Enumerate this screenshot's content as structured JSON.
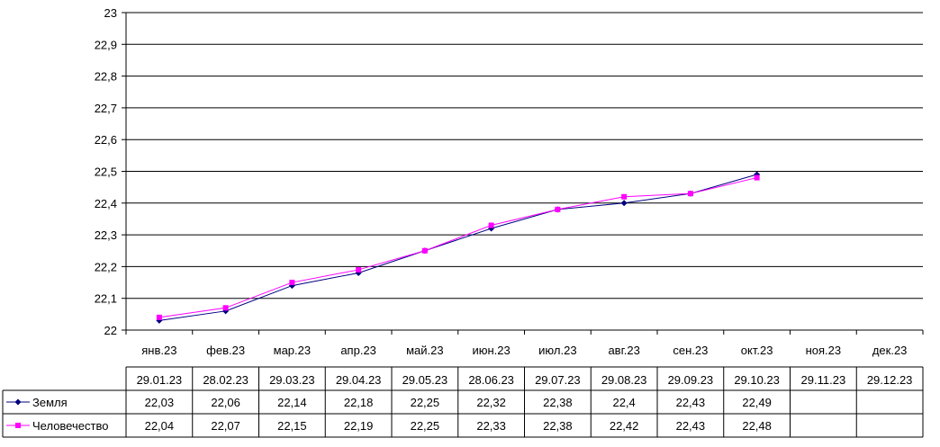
{
  "chart_data": {
    "type": "line",
    "title": "",
    "xlabel": "",
    "ylabel": "",
    "ylim": [
      22,
      23
    ],
    "y_ticks": [
      "22",
      "22,1",
      "22,2",
      "22,3",
      "22,4",
      "22,5",
      "22,6",
      "22,7",
      "22,8",
      "22,9",
      "23"
    ],
    "grid": true,
    "categories": [
      "янв.23",
      "фев.23",
      "мар.23",
      "апр.23",
      "май.23",
      "июн.23",
      "июл.23",
      "авг.23",
      "сен.23",
      "окт.23",
      "ноя.23",
      "дек.23"
    ],
    "table_dates": [
      "29.01.23",
      "28.02.23",
      "29.03.23",
      "29.04.23",
      "29.05.23",
      "28.06.23",
      "29.07.23",
      "29.08.23",
      "29.09.23",
      "29.10.23",
      "29.11.23",
      "29.12.23"
    ],
    "series": [
      {
        "name": "Земля",
        "color": "#000080",
        "marker": "diamond",
        "values": [
          22.03,
          22.06,
          22.14,
          22.18,
          22.25,
          22.32,
          22.38,
          22.4,
          22.43,
          22.49,
          null,
          null
        ],
        "labels": [
          "22,03",
          "22,06",
          "22,14",
          "22,18",
          "22,25",
          "22,32",
          "22,38",
          "22,4",
          "22,43",
          "22,49",
          "",
          ""
        ]
      },
      {
        "name": "Человечество",
        "color": "#ff00ff",
        "marker": "square",
        "values": [
          22.04,
          22.07,
          22.15,
          22.19,
          22.25,
          22.33,
          22.38,
          22.42,
          22.43,
          22.48,
          null,
          null
        ],
        "labels": [
          "22,04",
          "22,07",
          "22,15",
          "22,19",
          "22,25",
          "22,33",
          "22,38",
          "22,42",
          "22,43",
          "22,48",
          "",
          ""
        ]
      }
    ]
  }
}
